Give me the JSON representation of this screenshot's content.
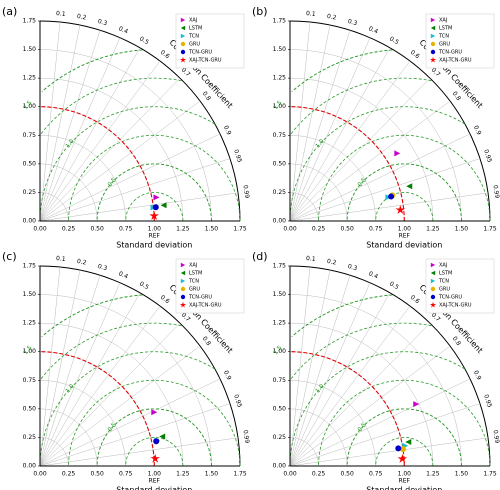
{
  "chart_data": [
    {
      "type": "taylor",
      "panel_label": "(a)",
      "xlabel": "Standard deviation",
      "arc_label": "Correlation Coefficient",
      "ref_label": "REF",
      "ref_std": 1.0,
      "xlim": [
        0,
        1.75
      ],
      "xticks": [
        {
          "value": 0,
          "label": "0.00"
        },
        {
          "value": 0.25,
          "label": "0.25"
        },
        {
          "value": 0.5,
          "label": "0.50"
        },
        {
          "value": 0.75,
          "label": "0.75"
        },
        {
          "value": 1,
          "label": "1.00"
        },
        {
          "value": 1.25,
          "label": "1.25"
        },
        {
          "value": 1.5,
          "label": "1.50"
        },
        {
          "value": 1.75,
          "label": "1.75"
        }
      ],
      "yticks": [
        {
          "value": 0,
          "label": "0.00"
        },
        {
          "value": 0.25,
          "label": "0.25"
        },
        {
          "value": 0.5,
          "label": "0.50"
        },
        {
          "value": 0.75,
          "label": "0.75"
        },
        {
          "value": 1,
          "label": "1.00"
        },
        {
          "value": 1.25,
          "label": "1.25"
        },
        {
          "value": 1.5,
          "label": "1.50"
        },
        {
          "value": 1.75,
          "label": "1.75"
        }
      ],
      "corr_ticks": [
        0.1,
        0.2,
        0.3,
        0.4,
        0.5,
        0.6,
        0.7,
        0.8,
        0.9,
        0.95,
        0.99
      ],
      "rmsd_contours": [
        0.25,
        0.5,
        0.75,
        1.25,
        1.5
      ],
      "rmsd_labels": [
        0.5,
        {
          "value": 1,
          "label": "1.0"
        },
        1.5
      ],
      "series": [
        {
          "name": "XAJ",
          "color": "#cc00cc",
          "marker": "triangle-right",
          "std": 1.04,
          "corr": 0.98
        },
        {
          "name": "LSTM",
          "color": "#008000",
          "marker": "triangle-left",
          "std": 1.09,
          "corr": 0.992
        },
        {
          "name": "TCN",
          "color": "#17becf",
          "marker": "triangle-right",
          "std": 1.0,
          "corr": 0.993
        },
        {
          "name": "GRU",
          "color": "#e6b400",
          "marker": "circle",
          "std": 1.02,
          "corr": 0.993
        },
        {
          "name": "TCN-GRU",
          "color": "#0000cc",
          "marker": "circle",
          "std": 1.02,
          "corr": 0.993
        },
        {
          "name": "XAJ-TCN-GRU",
          "color": "#ff0000",
          "marker": "star",
          "std": 1.0,
          "corr": 0.999
        }
      ]
    },
    {
      "type": "taylor",
      "panel_label": "(b)",
      "xlabel": "Standard deviation",
      "arc_label": "Correlation Coefficient",
      "ref_label": "REF",
      "ref_std": 1.0,
      "xlim": [
        0,
        1.75
      ],
      "xticks": [
        {
          "value": 0,
          "label": "0.00"
        },
        {
          "value": 0.25,
          "label": "0.25"
        },
        {
          "value": 0.5,
          "label": "0.50"
        },
        {
          "value": 0.75,
          "label": "0.75"
        },
        {
          "value": 1,
          "label": "1.00"
        },
        {
          "value": 1.25,
          "label": "1.25"
        },
        {
          "value": 1.5,
          "label": "1.50"
        },
        {
          "value": 1.75,
          "label": "1.75"
        }
      ],
      "yticks": [
        {
          "value": 0,
          "label": "0.00"
        },
        {
          "value": 0.25,
          "label": "0.25"
        },
        {
          "value": 0.5,
          "label": "0.50"
        },
        {
          "value": 0.75,
          "label": "0.75"
        },
        {
          "value": 1,
          "label": "1.00"
        },
        {
          "value": 1.25,
          "label": "1.25"
        },
        {
          "value": 1.5,
          "label": "1.50"
        },
        {
          "value": 1.75,
          "label": "1.75"
        }
      ],
      "corr_ticks": [
        0.1,
        0.2,
        0.3,
        0.4,
        0.5,
        0.6,
        0.7,
        0.8,
        0.9,
        0.95,
        0.99
      ],
      "rmsd_contours": [
        0.25,
        0.5,
        0.75,
        1.25,
        1.5
      ],
      "rmsd_labels": [
        0.5,
        {
          "value": 1,
          "label": "1.0"
        },
        1.5
      ],
      "series": [
        {
          "name": "XAJ",
          "color": "#cc00cc",
          "marker": "triangle-right",
          "std": 1.11,
          "corr": 0.846
        },
        {
          "name": "LSTM",
          "color": "#008000",
          "marker": "triangle-left",
          "std": 1.087,
          "corr": 0.96
        },
        {
          "name": "TCN",
          "color": "#17becf",
          "marker": "triangle-right",
          "std": 0.886,
          "corr": 0.972
        },
        {
          "name": "GRU",
          "color": "#e6b400",
          "marker": "circle",
          "std": 0.924,
          "corr": 0.97
        },
        {
          "name": "TCN-GRU",
          "color": "#0000cc",
          "marker": "circle",
          "std": 0.91,
          "corr": 0.972
        },
        {
          "name": "XAJ-TCN-GRU",
          "color": "#ff0000",
          "marker": "star",
          "std": 0.97,
          "corr": 0.995
        }
      ]
    },
    {
      "type": "taylor",
      "panel_label": "(c)",
      "xlabel": "Standard deviation",
      "arc_label": "Correlation Coefficient",
      "ref_label": "REF",
      "ref_std": 1.0,
      "xlim": [
        0,
        1.75
      ],
      "xticks": [
        {
          "value": 0,
          "label": "0.00"
        },
        {
          "value": 0.25,
          "label": "0.25"
        },
        {
          "value": 0.5,
          "label": "0.50"
        },
        {
          "value": 0.75,
          "label": "0.75"
        },
        {
          "value": 1,
          "label": "1.00"
        },
        {
          "value": 1.25,
          "label": "1.25"
        },
        {
          "value": 1.5,
          "label": "1.50"
        },
        {
          "value": 1.75,
          "label": "1.75"
        }
      ],
      "yticks": [
        {
          "value": 0,
          "label": "0.00"
        },
        {
          "value": 0.25,
          "label": "0.25"
        },
        {
          "value": 0.5,
          "label": "0.50"
        },
        {
          "value": 0.75,
          "label": "0.75"
        },
        {
          "value": 1,
          "label": "1.00"
        },
        {
          "value": 1.25,
          "label": "1.25"
        },
        {
          "value": 1.5,
          "label": "1.50"
        },
        {
          "value": 1.75,
          "label": "1.75"
        }
      ],
      "corr_ticks": [
        0.1,
        0.2,
        0.3,
        0.4,
        0.5,
        0.6,
        0.7,
        0.8,
        0.9,
        0.95,
        0.99
      ],
      "rmsd_contours": [
        0.25,
        0.5,
        0.75,
        1.25,
        1.5
      ],
      "rmsd_labels": [
        0.5,
        {
          "value": 1,
          "label": "1.0"
        },
        1.5
      ],
      "series": [
        {
          "name": "XAJ",
          "color": "#cc00cc",
          "marker": "triangle-right",
          "std": 1.105,
          "corr": 0.905
        },
        {
          "name": "LSTM",
          "color": "#008000",
          "marker": "triangle-left",
          "std": 1.1,
          "corr": 0.972
        },
        {
          "name": "TCN",
          "color": "#17becf",
          "marker": "triangle-right",
          "std": 1.05,
          "corr": 0.977
        },
        {
          "name": "GRU",
          "color": "#e6b400",
          "marker": "circle",
          "std": 1.04,
          "corr": 0.978
        },
        {
          "name": "TCN-GRU",
          "color": "#0000cc",
          "marker": "circle",
          "std": 1.04,
          "corr": 0.978
        },
        {
          "name": "XAJ-TCN-GRU",
          "color": "#ff0000",
          "marker": "star",
          "std": 1.01,
          "corr": 0.998
        }
      ]
    },
    {
      "type": "taylor",
      "panel_label": "(d)",
      "xlabel": "Standard deviation",
      "arc_label": "Correlation Coefficient",
      "ref_label": "REF",
      "ref_std": 1.0,
      "xlim": [
        0,
        1.75
      ],
      "xticks": [
        {
          "value": 0,
          "label": "0.00"
        },
        {
          "value": 0.25,
          "label": "0.25"
        },
        {
          "value": 0.5,
          "label": "0.50"
        },
        {
          "value": 0.75,
          "label": "0.75"
        },
        {
          "value": 1,
          "label": "1.00"
        },
        {
          "value": 1.25,
          "label": "1.25"
        },
        {
          "value": 1.5,
          "label": "1.50"
        },
        {
          "value": 1.75,
          "label": "1.75"
        }
      ],
      "yticks": [
        {
          "value": 0,
          "label": "0.00"
        },
        {
          "value": 0.25,
          "label": "0.25"
        },
        {
          "value": 0.5,
          "label": "0.50"
        },
        {
          "value": 0.75,
          "label": "0.75"
        },
        {
          "value": 1,
          "label": "1.00"
        },
        {
          "value": 1.25,
          "label": "1.25"
        },
        {
          "value": 1.5,
          "label": "1.50"
        },
        {
          "value": 1.75,
          "label": "1.75"
        }
      ],
      "corr_ticks": [
        0.1,
        0.2,
        0.3,
        0.4,
        0.5,
        0.6,
        0.7,
        0.8,
        0.9,
        0.95,
        0.99
      ],
      "rmsd_contours": [
        0.25,
        0.5,
        0.75,
        1.25,
        1.5
      ],
      "rmsd_labels": [
        0.5,
        {
          "value": 1,
          "label": "1.0"
        },
        1.5
      ],
      "series": [
        {
          "name": "XAJ",
          "color": "#cc00cc",
          "marker": "triangle-right",
          "std": 1.23,
          "corr": 0.898
        },
        {
          "name": "LSTM",
          "color": "#008000",
          "marker": "triangle-left",
          "std": 1.056,
          "corr": 0.98
        },
        {
          "name": "TCN",
          "color": "#17becf",
          "marker": "triangle-right",
          "std": 1.024,
          "corr": 0.985
        },
        {
          "name": "GRU",
          "color": "#e6b400",
          "marker": "circle",
          "std": 1.0,
          "corr": 0.989
        },
        {
          "name": "TCN-GRU",
          "color": "#0000cc",
          "marker": "circle",
          "std": 0.96,
          "corr": 0.987
        },
        {
          "name": "XAJ-TCN-GRU",
          "color": "#ff0000",
          "marker": "star",
          "std": 0.985,
          "corr": 0.998
        }
      ]
    }
  ]
}
